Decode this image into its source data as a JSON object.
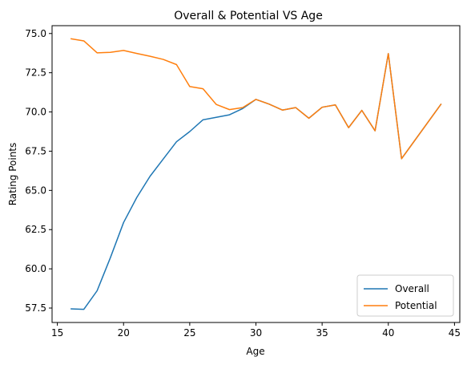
{
  "chart_data": {
    "type": "line",
    "title": "Overall & Potential VS Age",
    "xlabel": "Age",
    "ylabel": "Rating Points",
    "xlim": [
      14.6,
      45.4
    ],
    "ylim": [
      56.58,
      75.5
    ],
    "xticks": [
      15,
      20,
      25,
      30,
      35,
      40,
      45
    ],
    "yticks": [
      57.5,
      60.0,
      62.5,
      65.0,
      67.5,
      70.0,
      72.5,
      75.0
    ],
    "xtick_labels": [
      "15",
      "20",
      "25",
      "30",
      "35",
      "40",
      "45"
    ],
    "ytick_labels": [
      "57.5",
      "60.0",
      "62.5",
      "65.0",
      "67.5",
      "70.0",
      "72.5",
      "75.0"
    ],
    "grid": false,
    "legend_position": "lower-right",
    "x": [
      16,
      17,
      18,
      19,
      20,
      21,
      22,
      23,
      24,
      25,
      26,
      27,
      28,
      29,
      30,
      31,
      32,
      33,
      34,
      35,
      36,
      37,
      38,
      39,
      40,
      41,
      44
    ],
    "series": [
      {
        "name": "Overall",
        "color": "#1f77b4",
        "values": [
          57.45,
          57.42,
          58.6,
          60.7,
          62.95,
          64.55,
          65.9,
          67.0,
          68.1,
          68.75,
          69.5,
          69.66,
          69.82,
          70.22,
          70.8,
          70.5,
          70.12,
          70.28,
          69.6,
          70.3,
          70.45,
          69.0,
          70.1,
          68.8,
          73.72,
          67.02,
          70.52
        ]
      },
      {
        "name": "Potential",
        "color": "#ff7f0e",
        "values": [
          74.67,
          74.53,
          73.77,
          73.8,
          73.92,
          73.73,
          73.55,
          73.35,
          73.02,
          71.62,
          71.48,
          70.48,
          70.15,
          70.28,
          70.8,
          70.5,
          70.12,
          70.28,
          69.6,
          70.3,
          70.45,
          69.0,
          70.1,
          68.8,
          73.72,
          67.02,
          70.52
        ]
      }
    ]
  }
}
